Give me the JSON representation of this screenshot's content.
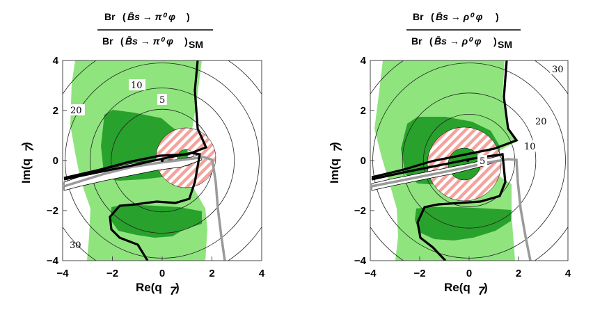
{
  "chart_data": [
    {
      "type": "contour",
      "title_num_prefix": "Br",
      "title_num": "B̄s → π⁰ φ",
      "title_den_prefix": "Br",
      "title_den": "B̄s → π⁰ φ",
      "title_den_sub": "SM",
      "xlabel_main": "Re(q",
      "xlabel_sub": "7",
      "xlabel_end": ")",
      "ylabel_main": "Im(q",
      "ylabel_sub": "7",
      "ylabel_end": ")",
      "xlim": [
        -4,
        4
      ],
      "ylim": [
        -4,
        4
      ],
      "xticks": [
        "−4",
        "−2",
        "0",
        "2",
        "4"
      ],
      "yticks": [
        "−4",
        "−2",
        "0",
        "2",
        "4"
      ],
      "contour_center": [
        0,
        0
      ],
      "contour_levels": [
        {
          "label": "5",
          "radius": 2.05
        },
        {
          "label": "10",
          "radius": 2.9
        },
        {
          "label": "20",
          "radius": 3.9
        },
        {
          "label": "30",
          "radius": 4.8
        }
      ],
      "hatched_ring": {
        "center": [
          0.5,
          0.1
        ],
        "r_inner": 0.35,
        "r_outer": 1.2
      },
      "sm_point": [
        0,
        0
      ],
      "colors": {
        "light_green": "#8fe47e",
        "dark_green": "#29a12d",
        "hatch_red": "#f4a39c",
        "black_curve": "#000000",
        "gray_curve": "#9a9a9a"
      }
    },
    {
      "type": "contour",
      "title_num_prefix": "Br",
      "title_num": "B̄s → ρ⁰ φ",
      "title_den_prefix": "Br",
      "title_den": "B̄s → ρ⁰ φ",
      "title_den_sub": "SM",
      "xlabel_main": "Re(q",
      "xlabel_sub": "7",
      "xlabel_end": ")",
      "ylabel_main": "Im(q",
      "ylabel_sub": "7",
      "ylabel_end": ")",
      "xlim": [
        -4,
        4
      ],
      "ylim": [
        -4,
        4
      ],
      "xticks": [
        "−4",
        "−2",
        "0",
        "2",
        "4"
      ],
      "yticks": [
        "−4",
        "−2",
        "0",
        "2",
        "4"
      ],
      "contour_center": [
        0,
        0
      ],
      "contour_levels": [
        {
          "label": "5",
          "radius": 1.85
        },
        {
          "label": "10",
          "radius": 2.7
        },
        {
          "label": "20",
          "radius": 3.9
        },
        {
          "label": "30",
          "radius": 4.8
        }
      ],
      "hatched_ring": {
        "center": [
          -0.2,
          0.1
        ],
        "r_inner": 0.65,
        "r_outer": 1.5
      },
      "sm_point": [
        0,
        0
      ],
      "colors": {
        "light_green": "#8fe47e",
        "dark_green": "#29a12d",
        "hatch_red": "#f4a39c",
        "black_curve": "#000000",
        "gray_curve": "#9a9a9a"
      }
    }
  ]
}
